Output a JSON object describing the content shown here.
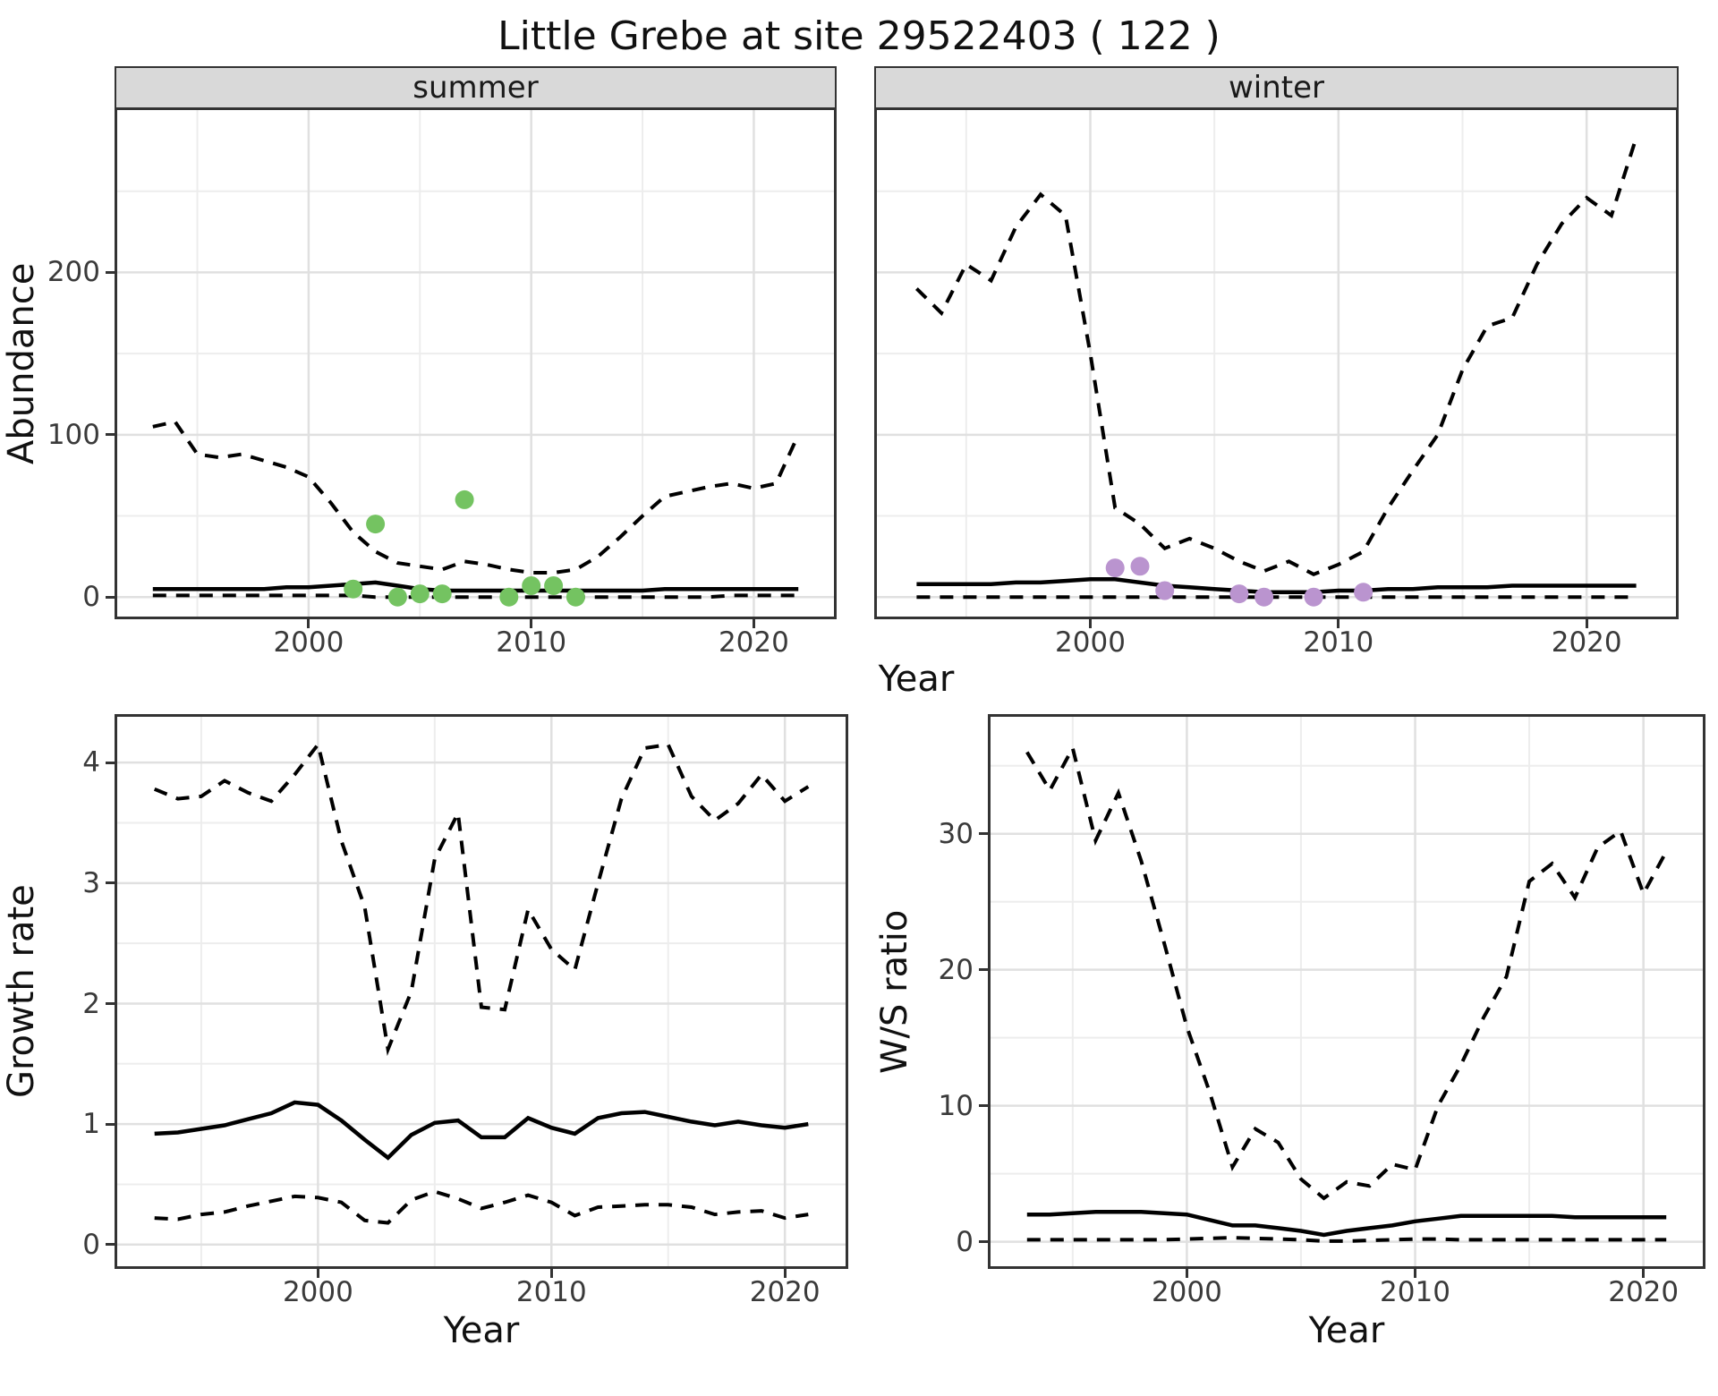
{
  "title": "Little Grebe at site 29522403 ( 122 )",
  "colors": {
    "summer_points": "#74c361",
    "winter_points": "#ba94cf",
    "line": "#000000",
    "grid_major": "#e0e0e0",
    "grid_minor": "#ededed",
    "strip_bg": "#d9d9d9",
    "panel_border": "#333333"
  },
  "top": {
    "xlabel": "Year",
    "ylabel": "Abundance",
    "facets": [
      {
        "label": "summer"
      },
      {
        "label": "winter"
      }
    ]
  },
  "bottom": {
    "growth": {
      "xlabel": "Year",
      "ylabel": "Growth rate"
    },
    "ws": {
      "xlabel": "Year",
      "ylabel": "W/S ratio"
    }
  },
  "chart_data": [
    {
      "id": "abundance-summer",
      "type": "line",
      "facet": "summer",
      "xlabel": "Year",
      "ylabel": "Abundance",
      "x_range": [
        1991.4,
        2023.6
      ],
      "y_range": [
        -12,
        300
      ],
      "x_major": [
        2000,
        2010,
        2020
      ],
      "x_minor": [
        1995,
        2005,
        2015
      ],
      "y_major": [
        0,
        100,
        200
      ],
      "y_minor": [
        50,
        150,
        250
      ],
      "show_y_ticks": true,
      "years": [
        1993,
        1994,
        1995,
        1996,
        1997,
        1998,
        1999,
        2000,
        2001,
        2002,
        2003,
        2004,
        2005,
        2006,
        2007,
        2008,
        2009,
        2010,
        2011,
        2012,
        2013,
        2014,
        2015,
        2016,
        2017,
        2018,
        2019,
        2020,
        2021,
        2022
      ],
      "series": [
        {
          "name": "upper 95% CI",
          "style": "dashed",
          "values": [
            105,
            108,
            88,
            86,
            88,
            84,
            80,
            74,
            58,
            40,
            28,
            21,
            19,
            17,
            22,
            20,
            17,
            15,
            15,
            17,
            25,
            37,
            50,
            62,
            65,
            68,
            70,
            67,
            70,
            100
          ]
        },
        {
          "name": "median",
          "style": "solid",
          "values": [
            5,
            5,
            5,
            5,
            5,
            5,
            6,
            6,
            7,
            8,
            9,
            7,
            5,
            4,
            4,
            4,
            4,
            4,
            4,
            4,
            4,
            4,
            4,
            5,
            5,
            5,
            5,
            5,
            5,
            5
          ]
        },
        {
          "name": "lower 95% CI",
          "style": "dashed",
          "values": [
            1,
            1,
            1,
            1,
            1,
            1,
            1,
            1,
            1,
            1,
            0,
            0,
            0,
            0,
            0,
            0,
            0,
            0,
            0,
            0,
            0,
            0,
            0,
            0,
            0,
            0,
            1,
            1,
            1,
            1
          ]
        }
      ],
      "points": {
        "name": "summer observed counts",
        "color": "#74c361",
        "data": [
          [
            2002,
            5
          ],
          [
            2003,
            45
          ],
          [
            2004,
            0
          ],
          [
            2005,
            2
          ],
          [
            2006,
            2
          ],
          [
            2007,
            60
          ],
          [
            2009,
            0
          ],
          [
            2010,
            7
          ],
          [
            2011,
            7
          ],
          [
            2012,
            0
          ]
        ]
      }
    },
    {
      "id": "abundance-winter",
      "type": "line",
      "facet": "winter",
      "xlabel": "Year",
      "ylabel": "Abundance",
      "x_range": [
        1991.4,
        2023.6
      ],
      "y_range": [
        -12,
        300
      ],
      "x_major": [
        2000,
        2010,
        2020
      ],
      "x_minor": [
        1995,
        2005,
        2015
      ],
      "y_major": [
        0,
        100,
        200
      ],
      "y_minor": [
        50,
        150,
        250
      ],
      "show_y_ticks": false,
      "years": [
        1993,
        1994,
        1995,
        1996,
        1997,
        1998,
        1999,
        2000,
        2001,
        2002,
        2003,
        2004,
        2005,
        2006,
        2007,
        2008,
        2009,
        2010,
        2011,
        2012,
        2013,
        2014,
        2015,
        2016,
        2017,
        2018,
        2019,
        2020,
        2021,
        2022
      ],
      "series": [
        {
          "name": "upper 95% CI",
          "style": "dashed",
          "values": [
            190,
            175,
            205,
            195,
            228,
            248,
            235,
            150,
            55,
            45,
            30,
            36,
            30,
            22,
            16,
            22,
            14,
            20,
            28,
            55,
            78,
            100,
            140,
            167,
            172,
            205,
            230,
            246,
            235,
            283
          ]
        },
        {
          "name": "median",
          "style": "solid",
          "values": [
            8,
            8,
            8,
            8,
            9,
            9,
            10,
            11,
            11,
            9,
            7,
            6,
            5,
            4,
            3,
            3,
            3,
            4,
            4,
            5,
            5,
            6,
            6,
            6,
            7,
            7,
            7,
            7,
            7,
            7
          ]
        },
        {
          "name": "lower 95% CI",
          "style": "dashed",
          "values": [
            0,
            0,
            0,
            0,
            0,
            0,
            0,
            0,
            0,
            0,
            0,
            0,
            0,
            0,
            0,
            0,
            0,
            0,
            0,
            0,
            0,
            0,
            0,
            0,
            0,
            0,
            0,
            0,
            0,
            0
          ]
        }
      ],
      "points": {
        "name": "winter observed counts",
        "color": "#ba94cf",
        "data": [
          [
            2001,
            18
          ],
          [
            2002,
            19
          ],
          [
            2003,
            4
          ],
          [
            2006,
            2
          ],
          [
            2007,
            0
          ],
          [
            2009,
            0
          ],
          [
            2011,
            3
          ]
        ]
      }
    },
    {
      "id": "growth-rate",
      "type": "line",
      "facet": null,
      "xlabel": "Year",
      "ylabel": "Growth rate",
      "x_range": [
        1991.4,
        2022.6
      ],
      "y_range": [
        -0.18,
        4.38
      ],
      "x_major": [
        2000,
        2010,
        2020
      ],
      "x_minor": [
        1995,
        2005,
        2015
      ],
      "y_major": [
        0,
        1,
        2,
        3,
        4
      ],
      "y_minor": [
        0.5,
        1.5,
        2.5,
        3.5
      ],
      "show_y_ticks": true,
      "years": [
        1993,
        1994,
        1995,
        1996,
        1997,
        1998,
        1999,
        2000,
        2001,
        2002,
        2003,
        2004,
        2005,
        2006,
        2007,
        2008,
        2009,
        2010,
        2011,
        2012,
        2013,
        2014,
        2015,
        2016,
        2017,
        2018,
        2019,
        2020,
        2021
      ],
      "series": [
        {
          "name": "upper 95% CI",
          "style": "dashed",
          "values": [
            3.78,
            3.7,
            3.72,
            3.85,
            3.75,
            3.68,
            3.9,
            4.15,
            3.35,
            2.8,
            1.62,
            2.1,
            3.2,
            3.58,
            1.97,
            1.95,
            2.78,
            2.45,
            2.28,
            3.0,
            3.7,
            4.12,
            4.15,
            3.72,
            3.52,
            3.66,
            3.9,
            3.68,
            3.8
          ]
        },
        {
          "name": "median",
          "style": "solid",
          "values": [
            0.92,
            0.93,
            0.96,
            0.99,
            1.04,
            1.09,
            1.18,
            1.16,
            1.03,
            0.87,
            0.72,
            0.91,
            1.01,
            1.03,
            0.89,
            0.89,
            1.05,
            0.97,
            0.92,
            1.05,
            1.09,
            1.1,
            1.06,
            1.02,
            0.99,
            1.02,
            0.99,
            0.97,
            1.0
          ]
        },
        {
          "name": "lower 95% CI",
          "style": "dashed",
          "values": [
            0.22,
            0.21,
            0.25,
            0.27,
            0.32,
            0.36,
            0.4,
            0.39,
            0.35,
            0.2,
            0.18,
            0.37,
            0.44,
            0.38,
            0.3,
            0.35,
            0.41,
            0.35,
            0.24,
            0.31,
            0.32,
            0.33,
            0.33,
            0.31,
            0.25,
            0.27,
            0.28,
            0.22,
            0.25
          ]
        }
      ],
      "points": null
    },
    {
      "id": "ws-ratio",
      "type": "line",
      "facet": null,
      "xlabel": "Year",
      "ylabel": "W/S ratio",
      "x_range": [
        1991.4,
        2022.6
      ],
      "y_range": [
        -1.8,
        38.6
      ],
      "x_major": [
        2000,
        2010,
        2020
      ],
      "x_minor": [
        1995,
        2005,
        2015
      ],
      "y_major": [
        0,
        10,
        20,
        30
      ],
      "y_minor": [
        5,
        15,
        25,
        35
      ],
      "show_y_ticks": true,
      "years": [
        1993,
        1994,
        1995,
        1996,
        1997,
        1998,
        1999,
        2000,
        2001,
        2002,
        2003,
        2004,
        2005,
        2006,
        2007,
        2008,
        2009,
        2010,
        2011,
        2012,
        2013,
        2014,
        2015,
        2016,
        2017,
        2018,
        2019,
        2020,
        2021
      ],
      "series": [
        {
          "name": "upper 95% CI",
          "style": "dashed",
          "values": [
            36.0,
            33.2,
            36.3,
            29.5,
            33.0,
            28.0,
            22.0,
            15.8,
            11.0,
            5.5,
            8.3,
            7.3,
            4.6,
            3.2,
            4.4,
            4.1,
            5.7,
            5.3,
            10.0,
            13.0,
            16.5,
            19.5,
            26.5,
            27.8,
            25.3,
            29.0,
            30.2,
            25.6,
            28.7
          ]
        },
        {
          "name": "median",
          "style": "solid",
          "values": [
            2.0,
            2.0,
            2.1,
            2.2,
            2.2,
            2.2,
            2.1,
            2.0,
            1.6,
            1.2,
            1.2,
            1.0,
            0.8,
            0.5,
            0.8,
            1.0,
            1.2,
            1.5,
            1.7,
            1.9,
            1.9,
            1.9,
            1.9,
            1.9,
            1.8,
            1.8,
            1.8,
            1.8,
            1.8
          ]
        },
        {
          "name": "lower 95% CI",
          "style": "dashed",
          "values": [
            0.15,
            0.15,
            0.15,
            0.15,
            0.15,
            0.15,
            0.15,
            0.2,
            0.25,
            0.3,
            0.25,
            0.2,
            0.15,
            0.05,
            0.05,
            0.1,
            0.15,
            0.2,
            0.2,
            0.15,
            0.15,
            0.15,
            0.15,
            0.15,
            0.15,
            0.15,
            0.15,
            0.15,
            0.15
          ]
        }
      ],
      "points": null
    }
  ]
}
